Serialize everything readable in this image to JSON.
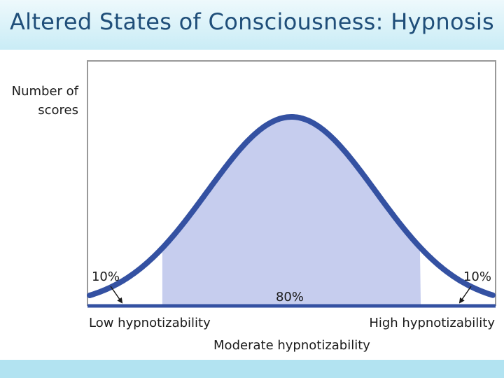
{
  "slide": {
    "title": "Altered States of Consciousness: Hypnosis"
  },
  "chart_data": {
    "type": "area",
    "distribution": "normal",
    "ylabel_lines": [
      "Number of",
      "scores"
    ],
    "xlabel": "Moderate hypnotizability",
    "x_tick_labels": {
      "left": "Low hypnotizability",
      "right": "High hypnotizability"
    },
    "regions": [
      {
        "label": "10%",
        "share": 10
      },
      {
        "label": "80%",
        "share": 80
      },
      {
        "label": "10%",
        "share": 10
      }
    ],
    "colors": {
      "curve": "#3451a2",
      "fill": "#c6cdee",
      "frame": "#999999"
    }
  }
}
